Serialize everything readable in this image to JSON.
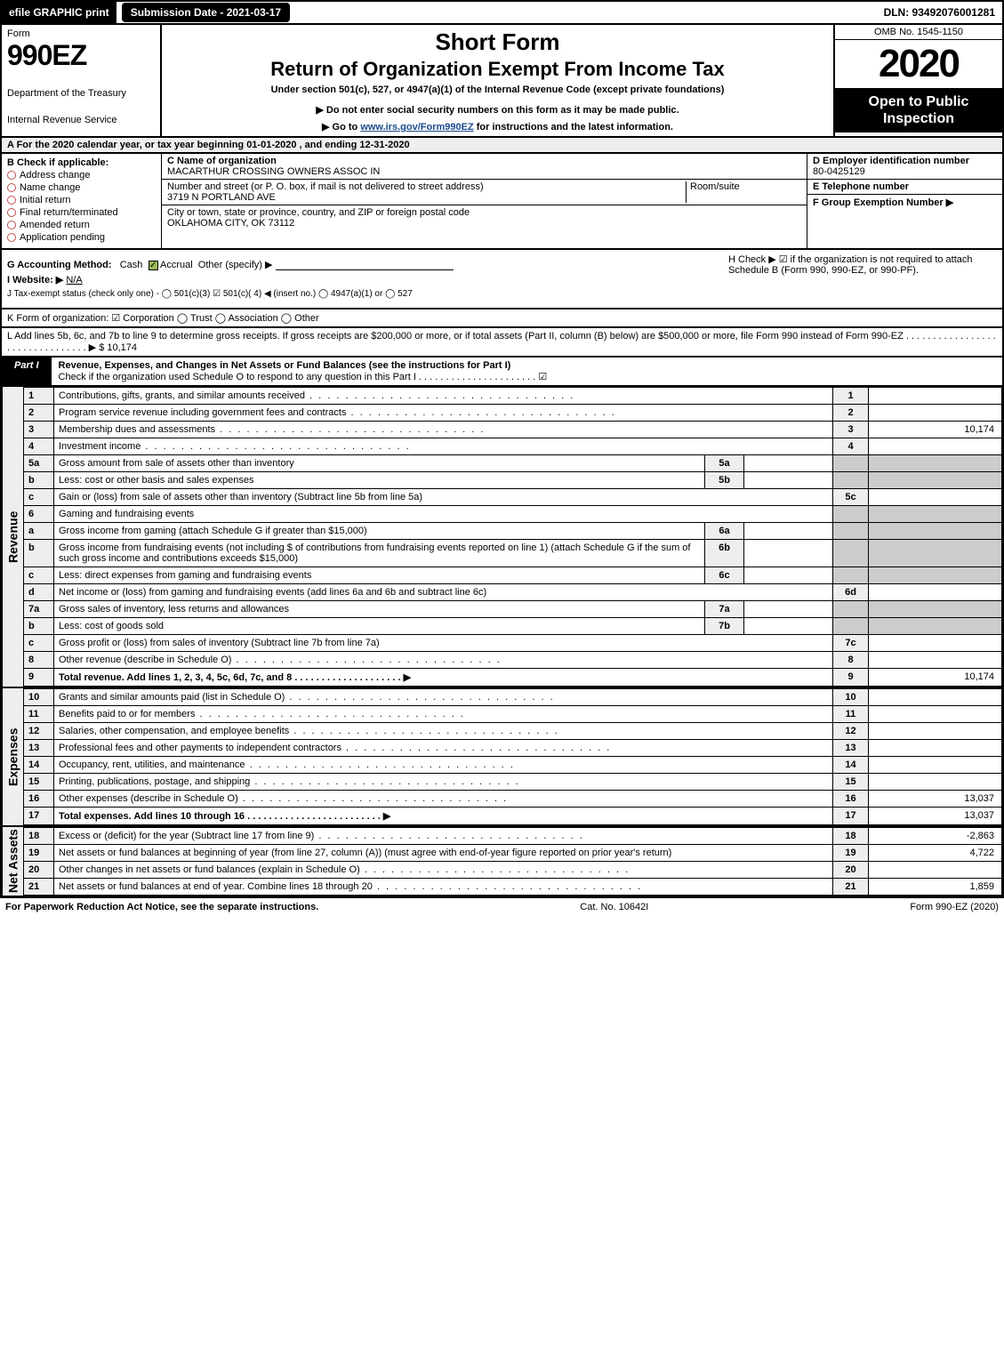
{
  "top": {
    "efile": "efile GRAPHIC print",
    "submission": "Submission Date - 2021-03-17",
    "dln": "DLN: 93492076001281"
  },
  "header": {
    "form_label": "Form",
    "form_number": "990EZ",
    "dept1": "Department of the Treasury",
    "dept2": "Internal Revenue Service",
    "short_form": "Short Form",
    "return_title": "Return of Organization Exempt From Income Tax",
    "subtitle": "Under section 501(c), 527, or 4947(a)(1) of the Internal Revenue Code (except private foundations)",
    "note": "▶ Do not enter social security numbers on this form as it may be made public.",
    "link_pre": "▶ Go to ",
    "link_url": "www.irs.gov/Form990EZ",
    "link_post": " for instructions and the latest information.",
    "omb": "OMB No. 1545-1150",
    "year": "2020",
    "open_public": "Open to Public Inspection"
  },
  "row_a": "A  For the 2020 calendar year, or tax year beginning 01-01-2020 , and ending 12-31-2020",
  "section_b": {
    "heading": "B  Check if applicable:",
    "items": [
      "Address change",
      "Name change",
      "Initial return",
      "Final return/terminated",
      "Amended return",
      "Application pending"
    ]
  },
  "section_c": {
    "name_label": "C Name of organization",
    "org_name": "MACARTHUR CROSSING OWNERS ASSOC IN",
    "street_label": "Number and street (or P. O. box, if mail is not delivered to street address)",
    "street": "3719 N PORTLAND AVE",
    "room_label": "Room/suite",
    "city_label": "City or town, state or province, country, and ZIP or foreign postal code",
    "city": "OKLAHOMA CITY, OK  73112"
  },
  "section_d": {
    "ein_label": "D Employer identification number",
    "ein": "80-0425129",
    "phone_label": "E Telephone number",
    "group_label": "F Group Exemption Number   ▶"
  },
  "section_g": "G Accounting Method:",
  "g_cash": "Cash",
  "g_accrual": "Accrual",
  "g_other": "Other (specify) ▶",
  "section_h": "H  Check ▶ ☑ if the organization is not required to attach Schedule B (Form 990, 990-EZ, or 990-PF).",
  "section_i_label": "I Website: ▶",
  "section_i_val": "N/A",
  "section_j": "J Tax-exempt status (check only one) - ◯ 501(c)(3)  ☑ 501(c)( 4) ◀ (insert no.)  ◯ 4947(a)(1) or  ◯ 527",
  "row_k": "K Form of organization:   ☑ Corporation   ◯ Trust   ◯ Association   ◯ Other",
  "row_l": "L Add lines 5b, 6c, and 7b to line 9 to determine gross receipts. If gross receipts are $200,000 or more, or if total assets (Part II, column (B) below) are $500,000 or more, file Form 990 instead of Form 990-EZ . . . . . . . . . . . . . . . . . . . . . . . . . . . . . . . . ▶ $ 10,174",
  "part1": {
    "tab": "Part I",
    "title": "Revenue, Expenses, and Changes in Net Assets or Fund Balances (see the instructions for Part I)",
    "check_text": "Check if the organization used Schedule O to respond to any question in this Part I . . . . . . . . . . . . . . . . . . . . . . ☑"
  },
  "side_labels": {
    "revenue": "Revenue",
    "expenses": "Expenses",
    "netassets": "Net Assets"
  },
  "lines": {
    "1": {
      "n": "1",
      "d": "Contributions, gifts, grants, and similar amounts received",
      "ln": "1",
      "amt": ""
    },
    "2": {
      "n": "2",
      "d": "Program service revenue including government fees and contracts",
      "ln": "2",
      "amt": ""
    },
    "3": {
      "n": "3",
      "d": "Membership dues and assessments",
      "ln": "3",
      "amt": "10,174"
    },
    "4": {
      "n": "4",
      "d": "Investment income",
      "ln": "4",
      "amt": ""
    },
    "5a": {
      "n": "5a",
      "d": "Gross amount from sale of assets other than inventory",
      "sub": "5a"
    },
    "5b": {
      "n": "b",
      "d": "Less: cost or other basis and sales expenses",
      "sub": "5b"
    },
    "5c": {
      "n": "c",
      "d": "Gain or (loss) from sale of assets other than inventory (Subtract line 5b from line 5a)",
      "ln": "5c",
      "amt": ""
    },
    "6": {
      "n": "6",
      "d": "Gaming and fundraising events"
    },
    "6a": {
      "n": "a",
      "d": "Gross income from gaming (attach Schedule G if greater than $15,000)",
      "sub": "6a"
    },
    "6b": {
      "n": "b",
      "d": "Gross income from fundraising events (not including $                       of contributions from fundraising events reported on line 1) (attach Schedule G if the sum of such gross income and contributions exceeds $15,000)",
      "sub": "6b"
    },
    "6c": {
      "n": "c",
      "d": "Less: direct expenses from gaming and fundraising events",
      "sub": "6c"
    },
    "6d": {
      "n": "d",
      "d": "Net income or (loss) from gaming and fundraising events (add lines 6a and 6b and subtract line 6c)",
      "ln": "6d",
      "amt": ""
    },
    "7a": {
      "n": "7a",
      "d": "Gross sales of inventory, less returns and allowances",
      "sub": "7a"
    },
    "7b": {
      "n": "b",
      "d": "Less: cost of goods sold",
      "sub": "7b"
    },
    "7c": {
      "n": "c",
      "d": "Gross profit or (loss) from sales of inventory (Subtract line 7b from line 7a)",
      "ln": "7c",
      "amt": ""
    },
    "8": {
      "n": "8",
      "d": "Other revenue (describe in Schedule O)",
      "ln": "8",
      "amt": ""
    },
    "9": {
      "n": "9",
      "d": "Total revenue. Add lines 1, 2, 3, 4, 5c, 6d, 7c, and 8    . . . . . . . . . . . . . . . . . . . .   ▶",
      "ln": "9",
      "amt": "10,174"
    },
    "10": {
      "n": "10",
      "d": "Grants and similar amounts paid (list in Schedule O)",
      "ln": "10",
      "amt": ""
    },
    "11": {
      "n": "11",
      "d": "Benefits paid to or for members",
      "ln": "11",
      "amt": ""
    },
    "12": {
      "n": "12",
      "d": "Salaries, other compensation, and employee benefits",
      "ln": "12",
      "amt": ""
    },
    "13": {
      "n": "13",
      "d": "Professional fees and other payments to independent contractors",
      "ln": "13",
      "amt": ""
    },
    "14": {
      "n": "14",
      "d": "Occupancy, rent, utilities, and maintenance",
      "ln": "14",
      "amt": ""
    },
    "15": {
      "n": "15",
      "d": "Printing, publications, postage, and shipping",
      "ln": "15",
      "amt": ""
    },
    "16": {
      "n": "16",
      "d": "Other expenses (describe in Schedule O)",
      "ln": "16",
      "amt": "13,037"
    },
    "17": {
      "n": "17",
      "d": "Total expenses. Add lines 10 through 16   . . . . . . . . . . . . . . . . . . . . . . . . .   ▶",
      "ln": "17",
      "amt": "13,037"
    },
    "18": {
      "n": "18",
      "d": "Excess or (deficit) for the year (Subtract line 17 from line 9)",
      "ln": "18",
      "amt": "-2,863"
    },
    "19": {
      "n": "19",
      "d": "Net assets or fund balances at beginning of year (from line 27, column (A)) (must agree with end-of-year figure reported on prior year's return)",
      "ln": "19",
      "amt": "4,722"
    },
    "20": {
      "n": "20",
      "d": "Other changes in net assets or fund balances (explain in Schedule O)",
      "ln": "20",
      "amt": ""
    },
    "21": {
      "n": "21",
      "d": "Net assets or fund balances at end of year. Combine lines 18 through 20",
      "ln": "21",
      "amt": "1,859"
    }
  },
  "footer": {
    "left": "For Paperwork Reduction Act Notice, see the separate instructions.",
    "mid": "Cat. No. 10642I",
    "right": "Form 990-EZ (2020)"
  },
  "colors": {
    "black": "#000000",
    "grey_bg": "#eeeeee",
    "grey_cell": "#cccccc",
    "link": "#1a4b8c",
    "check_green": "#9bbb59",
    "circle_red": "#c0504d"
  }
}
